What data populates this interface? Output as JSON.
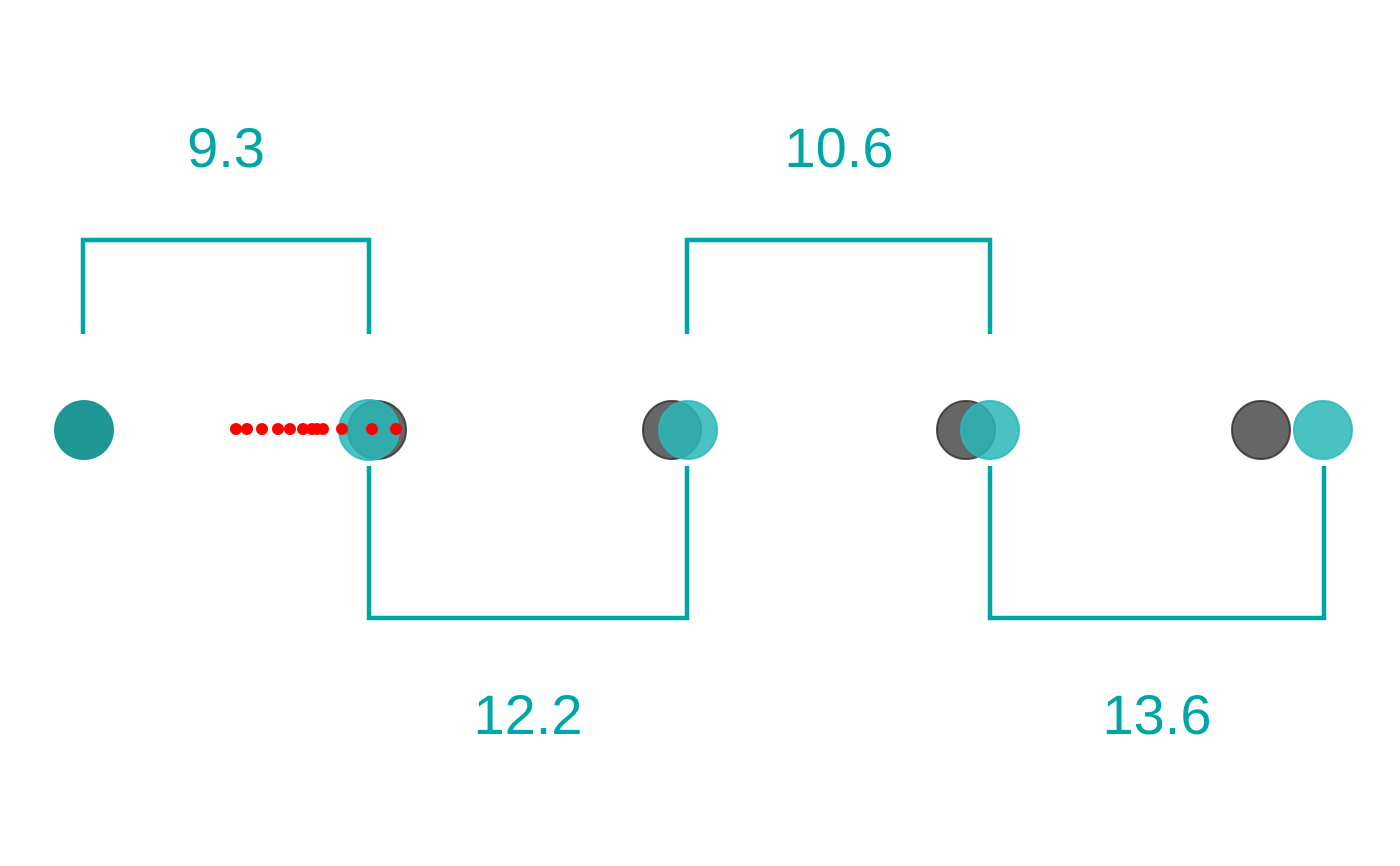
{
  "colors": {
    "accent": "#00A6A6",
    "teal_fill": "#1E9794",
    "teal_translucent": "#2BB7B7",
    "gray_fill": "#555555",
    "dot_red": "#FF0000",
    "background": "#FFFFFF"
  },
  "intervals": [
    {
      "label": "9.3",
      "position": "top"
    },
    {
      "label": "12.2",
      "position": "bottom"
    },
    {
      "label": "10.6",
      "position": "top"
    },
    {
      "label": "13.6",
      "position": "bottom"
    }
  ],
  "markers": [
    {
      "name": "start-marker",
      "kind": "teal"
    },
    {
      "name": "pair-1",
      "kind": "pair",
      "order": "teal-over-gray"
    },
    {
      "name": "pair-2",
      "kind": "pair",
      "order": "gray-then-teal"
    },
    {
      "name": "pair-3",
      "kind": "pair",
      "order": "gray-then-teal"
    },
    {
      "name": "pair-4",
      "kind": "pair",
      "order": "gray-then-teal"
    }
  ],
  "red_dots": {
    "count": 12,
    "description_shown": ""
  }
}
